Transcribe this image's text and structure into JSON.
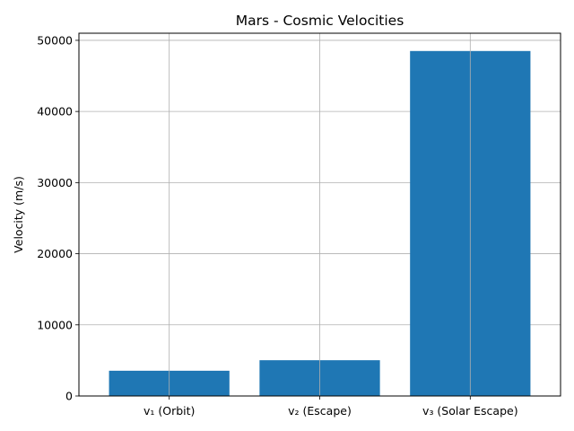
{
  "chart_data": {
    "type": "bar",
    "title": "Mars - Cosmic Velocities",
    "xlabel": "",
    "ylabel": "Velocity (m/s)",
    "categories": [
      "v₁ (Orbit)",
      "v₂ (Escape)",
      "v₃ (Solar Escape)"
    ],
    "values": [
      3550,
      5030,
      48500
    ],
    "ylim": [
      0,
      51000
    ],
    "yticks": [
      0,
      10000,
      20000,
      30000,
      40000,
      50000
    ],
    "grid": true,
    "bar_color": "#1f77b4",
    "grid_color": "#b0b0b0"
  }
}
